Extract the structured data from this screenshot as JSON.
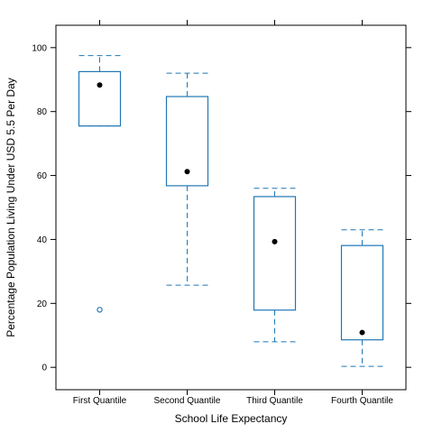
{
  "chart_data": {
    "type": "box",
    "title": "",
    "xlabel": "School Life Expectancy",
    "ylabel": "Percentage Population Living Under USD 5.5 Per Day",
    "ylim": [
      -7,
      107
    ],
    "yticks": [
      0,
      20,
      40,
      60,
      80,
      100
    ],
    "grid": false,
    "colors": {
      "box": "#1f77b4",
      "median": "#000000",
      "outlier": "#1f77b4"
    },
    "categories": [
      "First Quantile",
      "Second Quantile",
      "Third Quantile",
      "Fourth Quantile"
    ],
    "boxes": [
      {
        "whisker_low": 75.5,
        "q1": 75.5,
        "median": 88.3,
        "q3": 92.5,
        "whisker_high": 97.5,
        "outliers": [
          18
        ]
      },
      {
        "whisker_low": 25.7,
        "q1": 56.8,
        "median": 61.2,
        "q3": 84.7,
        "whisker_high": 92.0,
        "outliers": []
      },
      {
        "whisker_low": 8.0,
        "q1": 17.9,
        "median": 39.3,
        "q3": 53.4,
        "whisker_high": 56.0,
        "outliers": []
      },
      {
        "whisker_low": 0.3,
        "q1": 8.6,
        "median": 10.9,
        "q3": 38.1,
        "whisker_high": 43.0,
        "outliers": []
      }
    ]
  }
}
